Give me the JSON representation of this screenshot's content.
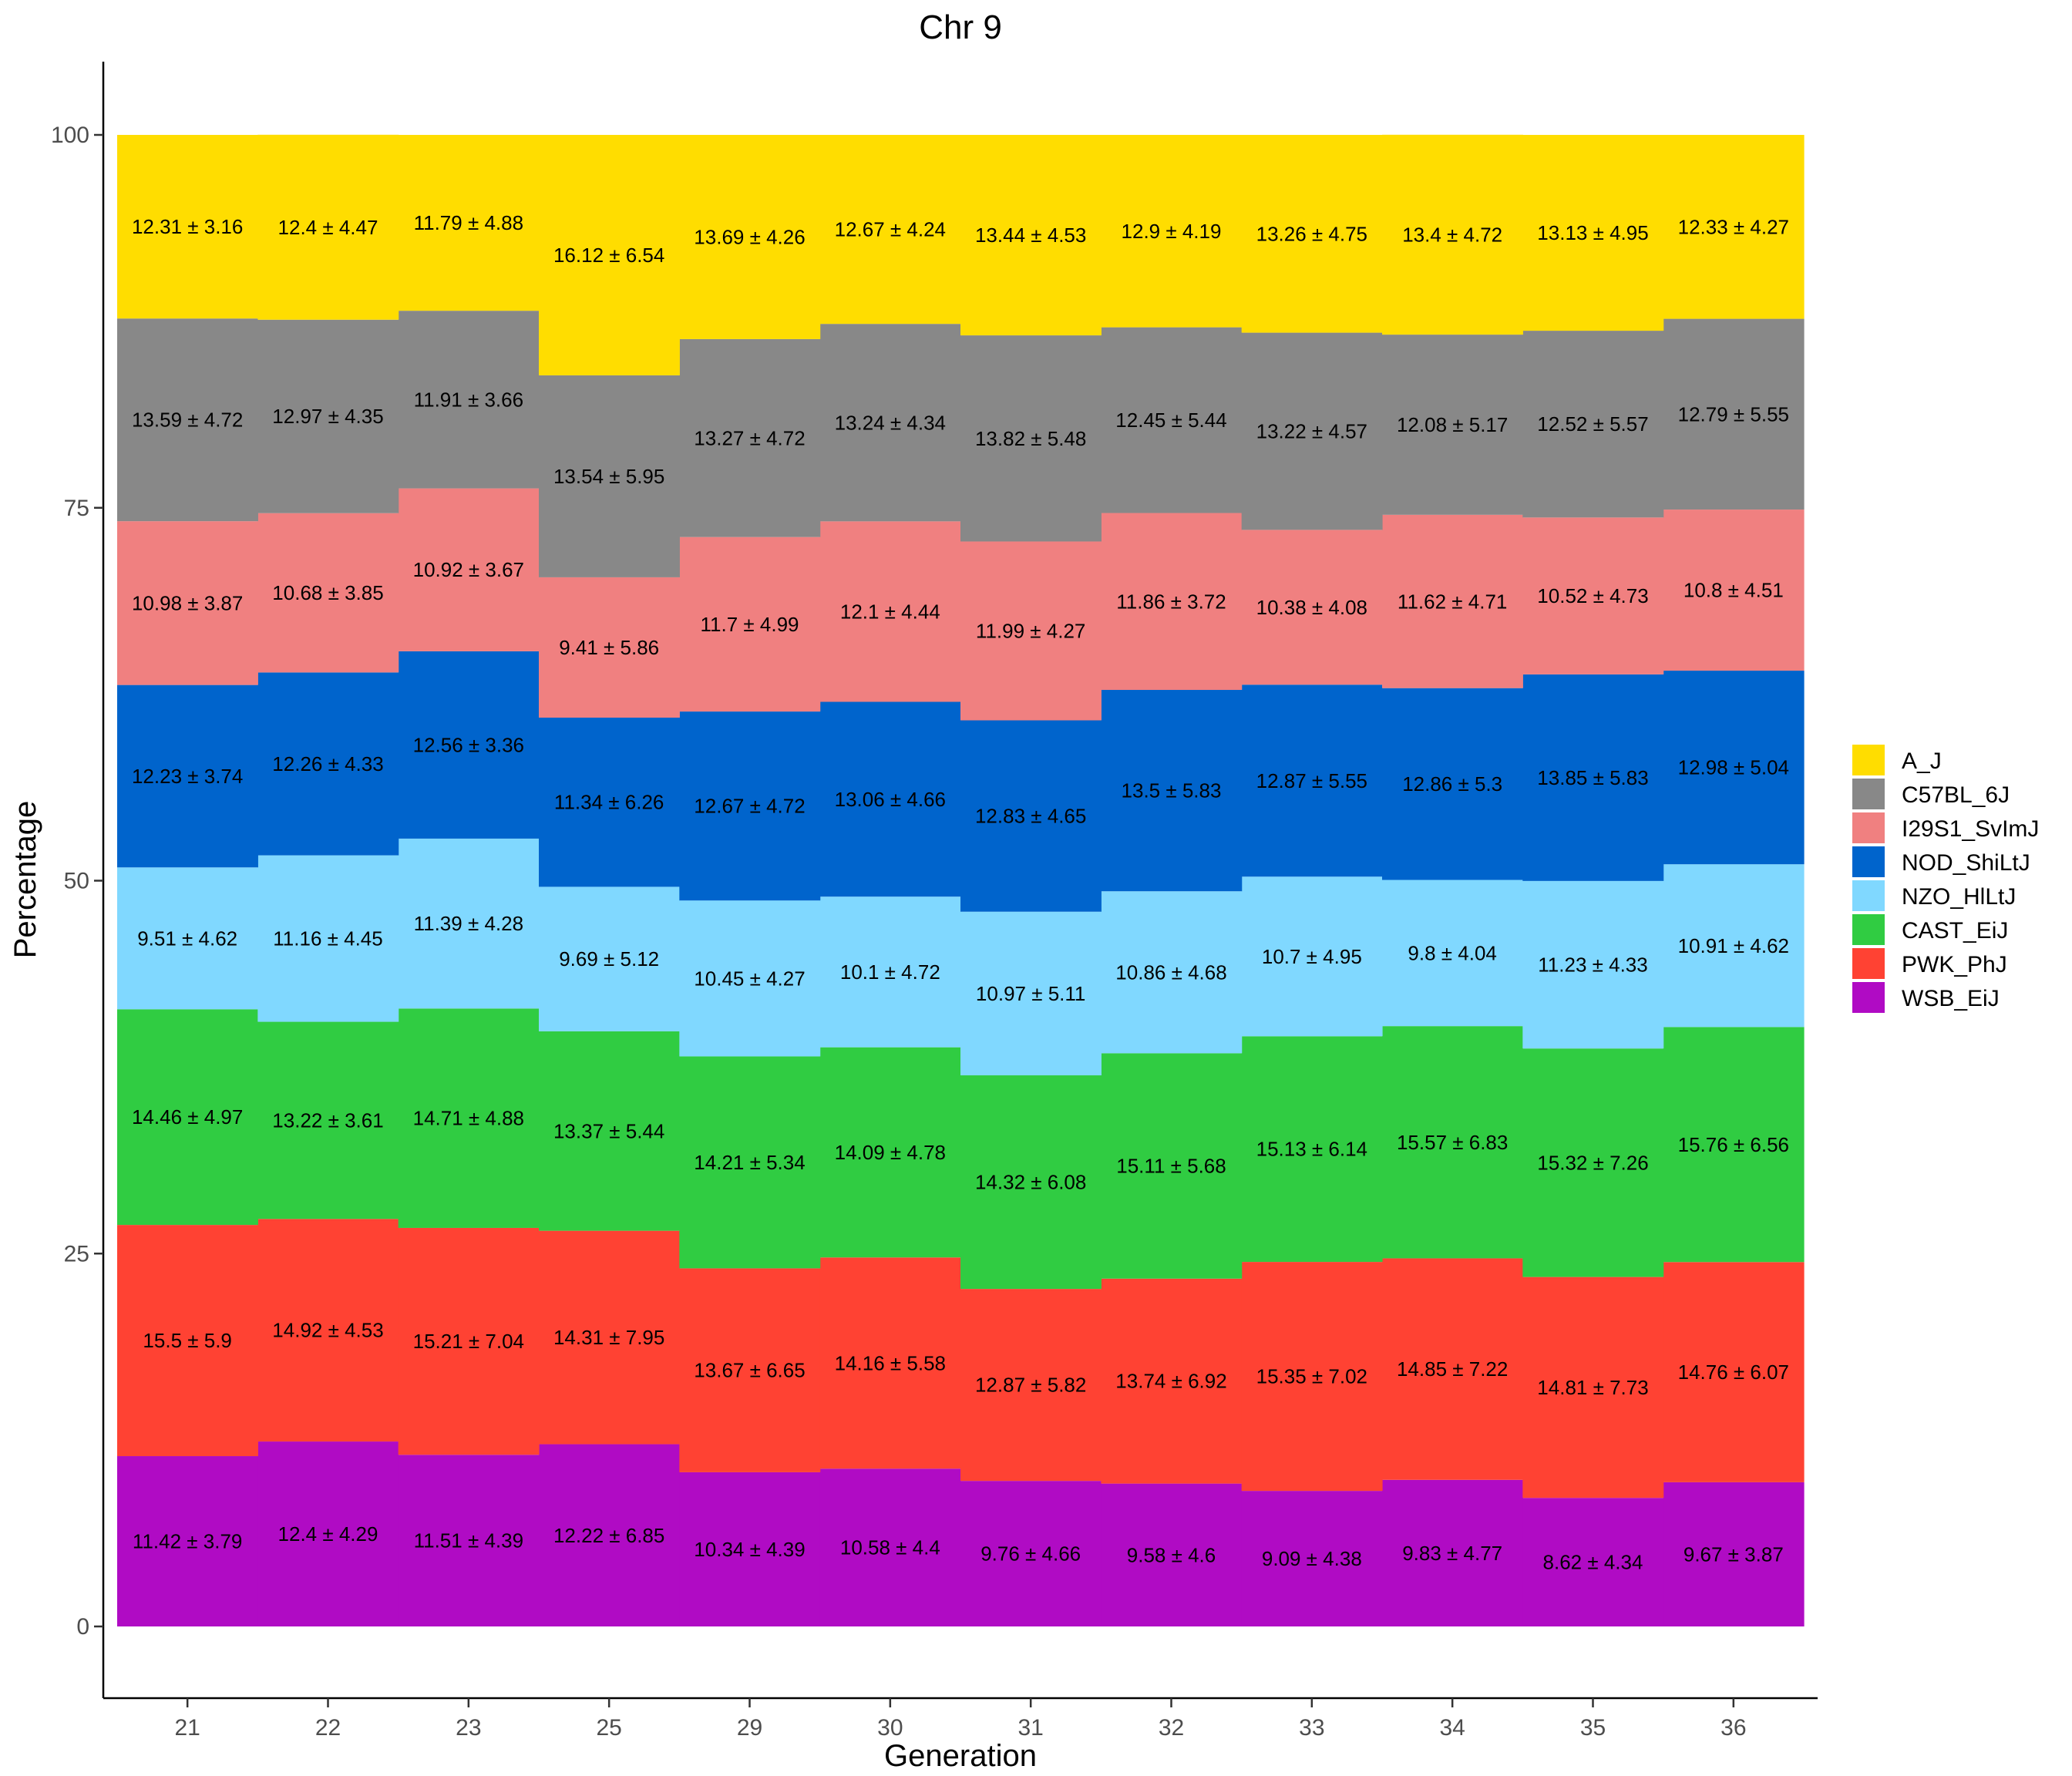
{
  "chart_data": {
    "type": "area",
    "title": "Chr 9",
    "xlabel": "Generation",
    "ylabel": "Percentage",
    "ylim": [
      -5,
      105
    ],
    "yticks": [
      0,
      25,
      50,
      75,
      100
    ],
    "categories": [
      "21",
      "22",
      "23",
      "25",
      "29",
      "30",
      "31",
      "32",
      "33",
      "34",
      "35",
      "36"
    ],
    "legend_position": "right",
    "series": [
      {
        "name": "WSB_EiJ",
        "color": "#B00BC4",
        "values": [
          11.42,
          12.4,
          11.51,
          12.22,
          10.34,
          10.58,
          9.76,
          9.58,
          9.09,
          9.83,
          8.62,
          9.67
        ],
        "labels": [
          "11.42 ± 3.79",
          "12.4 ± 4.29",
          "11.51 ± 4.39",
          "12.22 ± 6.85",
          "10.34 ± 4.39",
          "10.58 ± 4.4",
          "9.76 ± 4.66",
          "9.58 ± 4.6",
          "9.09 ± 4.38",
          "9.83 ± 4.77",
          "8.62 ± 4.34",
          "9.67 ± 3.87"
        ]
      },
      {
        "name": "PWK_PhJ",
        "color": "#FF4233",
        "values": [
          15.5,
          14.92,
          15.21,
          14.31,
          13.67,
          14.16,
          12.87,
          13.74,
          15.35,
          14.85,
          14.81,
          14.76
        ],
        "labels": [
          "15.5 ± 5.9",
          "14.92 ± 4.53",
          "15.21 ± 7.04",
          "14.31 ± 7.95",
          "13.67 ± 6.65",
          "14.16 ± 5.58",
          "12.87 ± 5.82",
          "13.74 ± 6.92",
          "15.35 ± 7.02",
          "14.85 ± 7.22",
          "14.81 ± 7.73",
          "14.76 ± 6.07"
        ]
      },
      {
        "name": "CAST_EiJ",
        "color": "#30CC42",
        "values": [
          14.46,
          13.22,
          14.71,
          13.37,
          14.21,
          14.09,
          14.32,
          15.11,
          15.13,
          15.57,
          15.32,
          15.76
        ],
        "labels": [
          "14.46 ± 4.97",
          "13.22 ± 3.61",
          "14.71 ± 4.88",
          "13.37 ± 5.44",
          "14.21 ± 5.34",
          "14.09 ± 4.78",
          "14.32 ± 6.08",
          "15.11 ± 5.68",
          "15.13 ± 6.14",
          "15.57 ± 6.83",
          "15.32 ± 7.26",
          "15.76 ± 6.56"
        ]
      },
      {
        "name": "NZO_HlLtJ",
        "color": "#80D8FF",
        "values": [
          9.51,
          11.16,
          11.39,
          9.69,
          10.45,
          10.1,
          10.97,
          10.86,
          10.7,
          9.8,
          11.23,
          10.91
        ],
        "labels": [
          "9.51 ± 4.62",
          "11.16 ± 4.45",
          "11.39 ± 4.28",
          "9.69 ± 5.12",
          "10.45 ± 4.27",
          "10.1 ± 4.72",
          "10.97 ± 5.11",
          "10.86 ± 4.68",
          "10.7 ± 4.95",
          "9.8 ± 4.04",
          "11.23 ± 4.33",
          "10.91 ± 4.62"
        ]
      },
      {
        "name": "NOD_ShiLtJ",
        "color": "#0064CC",
        "values": [
          12.23,
          12.26,
          12.56,
          11.34,
          12.67,
          13.06,
          12.83,
          13.5,
          12.87,
          12.86,
          13.85,
          12.98
        ],
        "labels": [
          "12.23 ± 3.74",
          "12.26 ± 4.33",
          "12.56 ± 3.36",
          "11.34 ± 6.26",
          "12.67 ± 4.72",
          "13.06 ± 4.66",
          "12.83 ± 4.65",
          "13.5 ± 5.83",
          "12.87 ± 5.55",
          "12.86 ± 5.3",
          "13.85 ± 5.83",
          "12.98 ± 5.04"
        ]
      },
      {
        "name": "I29S1_SvImJ",
        "color": "#F08080",
        "values": [
          10.98,
          10.68,
          10.92,
          9.41,
          11.7,
          12.1,
          11.99,
          11.86,
          10.38,
          11.62,
          10.52,
          10.8
        ],
        "labels": [
          "10.98 ± 3.87",
          "10.68 ± 3.85",
          "10.92 ± 3.67",
          "9.41 ± 5.86",
          "11.7 ± 4.99",
          "12.1 ± 4.44",
          "11.99 ± 4.27",
          "11.86 ± 3.72",
          "10.38 ± 4.08",
          "11.62 ± 4.71",
          "10.52 ± 4.73",
          "10.8 ± 4.51"
        ]
      },
      {
        "name": "C57BL_6J",
        "color": "#888888",
        "values": [
          13.59,
          12.97,
          11.91,
          13.54,
          13.27,
          13.24,
          13.82,
          12.45,
          13.22,
          12.08,
          12.52,
          12.79
        ],
        "labels": [
          "13.59 ± 4.72",
          "12.97 ± 4.35",
          "11.91 ± 3.66",
          "13.54 ± 5.95",
          "13.27 ± 4.72",
          "13.24 ± 4.34",
          "13.82 ± 5.48",
          "12.45 ± 5.44",
          "13.22 ± 4.57",
          "12.08 ± 5.17",
          "12.52 ± 5.57",
          "12.79 ± 5.55"
        ]
      },
      {
        "name": "A_J",
        "color": "#FFDD00",
        "values": [
          12.31,
          12.4,
          11.79,
          16.12,
          13.69,
          12.67,
          13.44,
          12.9,
          13.26,
          13.4,
          13.13,
          12.33
        ],
        "labels": [
          "12.31 ± 3.16",
          "12.4 ± 4.47",
          "11.79 ± 4.88",
          "16.12 ± 6.54",
          "13.69 ± 4.26",
          "12.67 ± 4.24",
          "13.44 ± 4.53",
          "12.9 ± 4.19",
          "13.26 ± 4.75",
          "13.4 ± 4.72",
          "13.13 ± 4.95",
          "12.33 ± 4.27"
        ]
      }
    ],
    "legend": [
      {
        "name": "A_J",
        "color": "#FFDD00"
      },
      {
        "name": "C57BL_6J",
        "color": "#888888"
      },
      {
        "name": "I29S1_SvImJ",
        "color": "#F08080"
      },
      {
        "name": "NOD_ShiLtJ",
        "color": "#0064CC"
      },
      {
        "name": "NZO_HlLtJ",
        "color": "#80D8FF"
      },
      {
        "name": "CAST_EiJ",
        "color": "#30CC42"
      },
      {
        "name": "PWK_PhJ",
        "color": "#FF4233"
      },
      {
        "name": "WSB_EiJ",
        "color": "#B00BC4"
      }
    ]
  }
}
